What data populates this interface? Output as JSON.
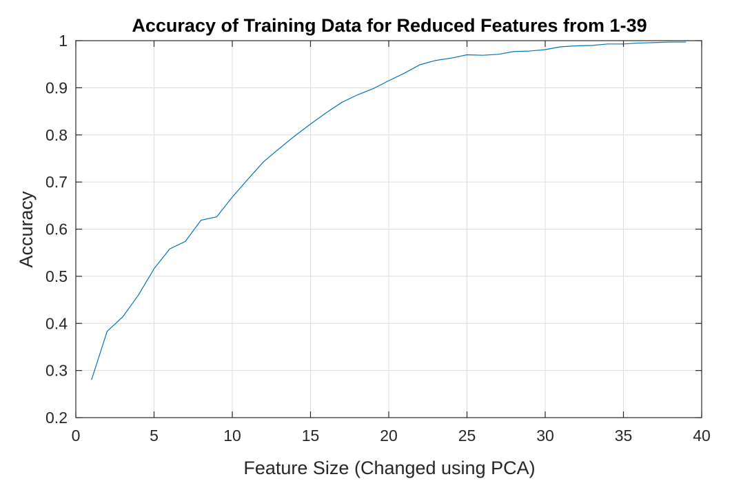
{
  "chart_data": {
    "type": "line",
    "title": "Accuracy of Training Data for Reduced Features from 1-39",
    "xlabel": "Feature Size (Changed using PCA)",
    "ylabel": "Accuracy",
    "xlim": [
      0,
      40
    ],
    "ylim": [
      0.2,
      1
    ],
    "xticks": [
      0,
      5,
      10,
      15,
      20,
      25,
      30,
      35,
      40
    ],
    "xtick_labels": [
      "0",
      "5",
      "10",
      "15",
      "20",
      "25",
      "30",
      "35",
      "40"
    ],
    "yticks": [
      0.2,
      0.3,
      0.4,
      0.5,
      0.6,
      0.7,
      0.8,
      0.9,
      1
    ],
    "ytick_labels": [
      "0.2",
      "0.3",
      "0.4",
      "0.5",
      "0.6",
      "0.7",
      "0.8",
      "0.9",
      "1"
    ],
    "grid": true,
    "series": [
      {
        "color": "#0072BD",
        "x": [
          1,
          2,
          3,
          4,
          5,
          6,
          7,
          8,
          9,
          10,
          11,
          12,
          13,
          14,
          15,
          16,
          17,
          18,
          19,
          20,
          21,
          22,
          23,
          24,
          25,
          26,
          27,
          28,
          29,
          30,
          31,
          32,
          33,
          34,
          35,
          36,
          37,
          38,
          39
        ],
        "y": [
          0.28,
          0.383,
          0.414,
          0.46,
          0.516,
          0.558,
          0.574,
          0.619,
          0.626,
          0.668,
          0.706,
          0.743,
          0.771,
          0.798,
          0.823,
          0.847,
          0.869,
          0.885,
          0.898,
          0.915,
          0.931,
          0.949,
          0.958,
          0.963,
          0.97,
          0.969,
          0.971,
          0.977,
          0.978,
          0.981,
          0.987,
          0.989,
          0.99,
          0.993,
          0.993,
          0.995,
          0.996,
          0.997,
          0.997
        ]
      }
    ]
  }
}
